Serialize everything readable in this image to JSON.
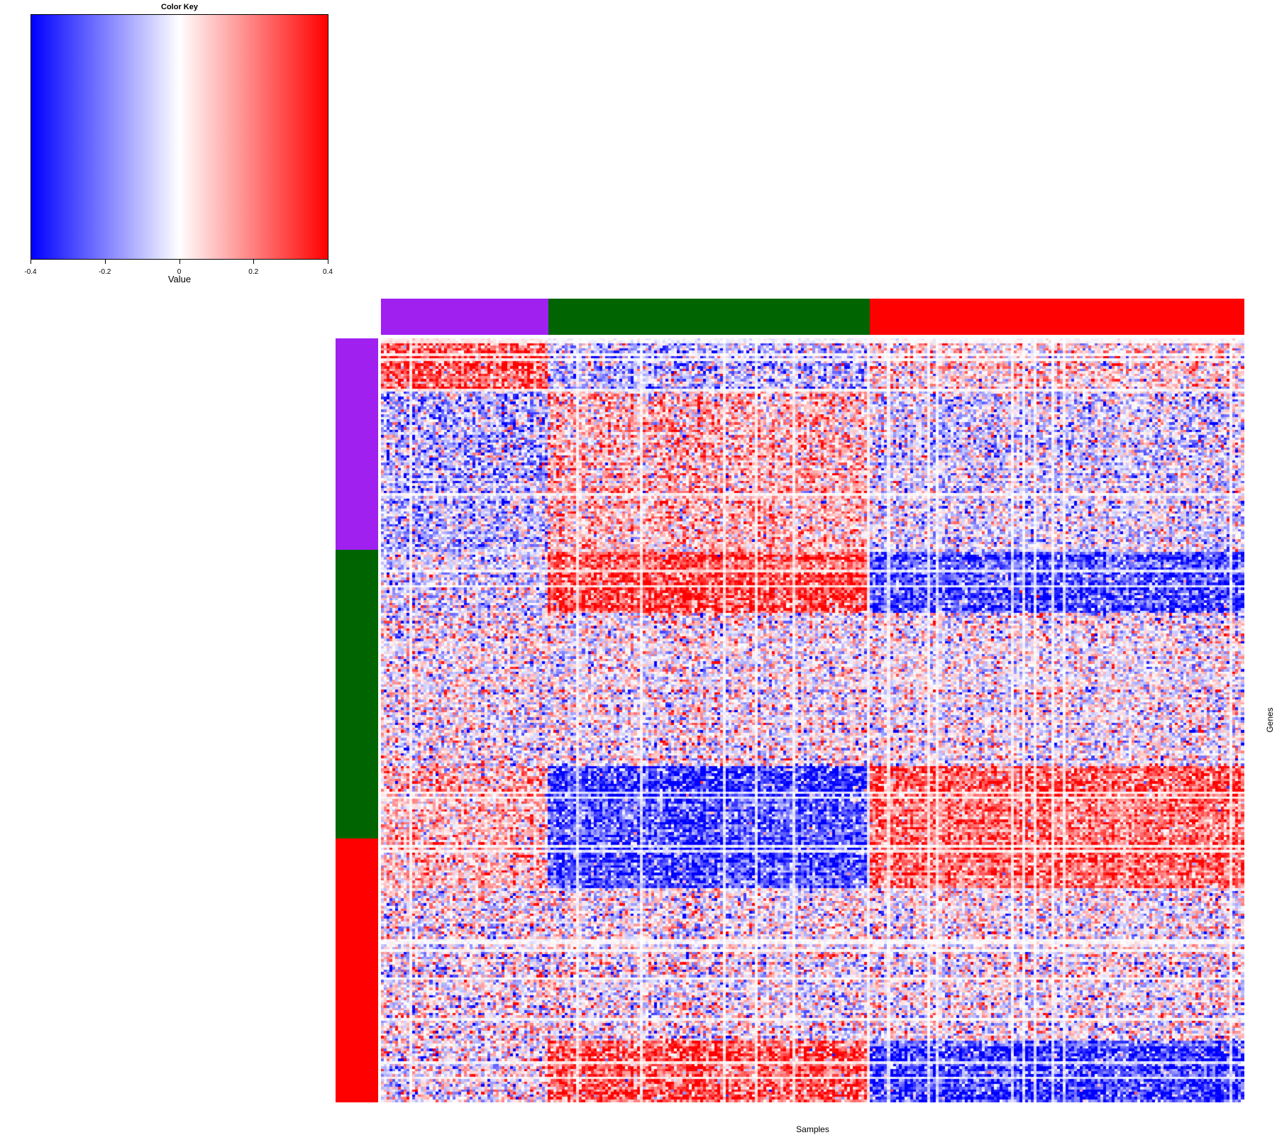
{
  "chart_data": {
    "type": "heatmap",
    "color_key": {
      "title": "Color Key",
      "xlabel": "Value",
      "range": [
        -0.4,
        0.4
      ],
      "ticks": [
        "-0.4",
        "-0.2",
        "0",
        "0.2",
        "0.4"
      ],
      "tick_values": [
        -0.4,
        -0.2,
        0,
        0.2,
        0.4
      ],
      "colors": [
        "#0000ff",
        "#ffffff",
        "#ff0000"
      ]
    },
    "xlabel": "Samples",
    "ylabel": "Genes",
    "n_samples": 300,
    "n_genes": 300,
    "column_groups": [
      {
        "color": "#a020f0",
        "fraction": 0.194
      },
      {
        "color": "#006400",
        "fraction": 0.372
      },
      {
        "color": "#ff0000",
        "fraction": 0.434
      }
    ],
    "row_groups": [
      {
        "color": "#a020f0",
        "fraction": 0.277
      },
      {
        "color": "#006400",
        "fraction": 0.378
      },
      {
        "color": "#ff0000",
        "fraction": 0.345
      }
    ],
    "block_pattern": {
      "row_bands": [
        {
          "end": 0.07,
          "means": [
            0.25,
            -0.1,
            0.05
          ]
        },
        {
          "end": 0.28,
          "means": [
            -0.1,
            0.1,
            -0.05
          ]
        },
        {
          "end": 0.36,
          "means": [
            -0.05,
            0.3,
            -0.3
          ]
        },
        {
          "end": 0.56,
          "means": [
            0.0,
            0.0,
            0.0
          ]
        },
        {
          "end": 0.72,
          "means": [
            0.1,
            -0.3,
            0.25
          ]
        },
        {
          "end": 0.92,
          "means": [
            0.0,
            0.0,
            0.0
          ]
        },
        {
          "end": 1.0,
          "means": [
            0.0,
            0.25,
            -0.3
          ]
        }
      ],
      "noise": 0.32
    }
  }
}
